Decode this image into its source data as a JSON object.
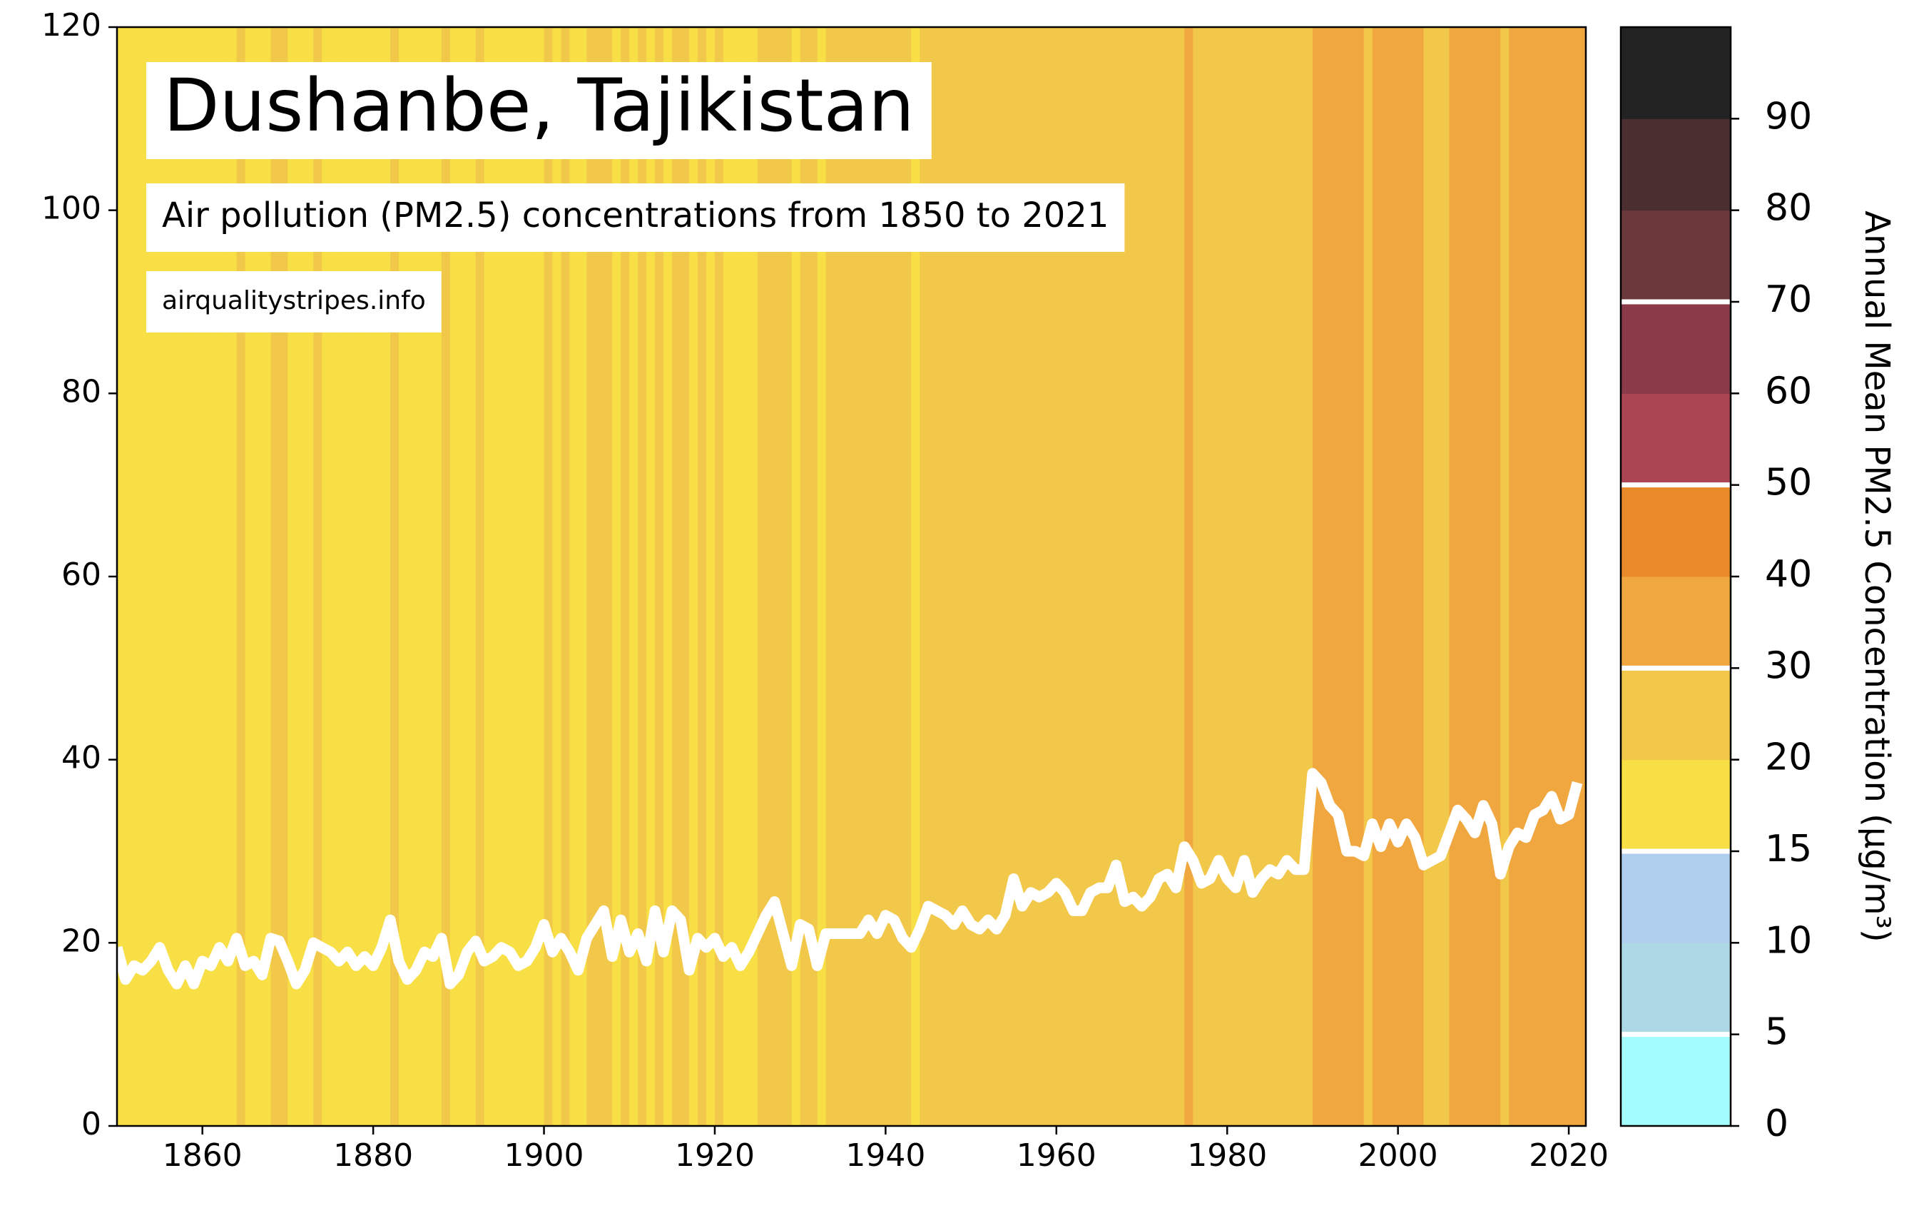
{
  "chart_data": {
    "type": "line",
    "title": "Dushanbe, Tajikistan",
    "subtitle": "Air pollution (PM2.5) concentrations from 1850 to 2021",
    "source": "airqualitystripes.info",
    "color": "#ffffff",
    "x": [
      1850,
      1851,
      1852,
      1853,
      1854,
      1855,
      1856,
      1857,
      1858,
      1859,
      1860,
      1861,
      1862,
      1863,
      1864,
      1865,
      1866,
      1867,
      1868,
      1869,
      1870,
      1871,
      1872,
      1873,
      1874,
      1875,
      1876,
      1877,
      1878,
      1879,
      1880,
      1881,
      1882,
      1883,
      1884,
      1885,
      1886,
      1887,
      1888,
      1889,
      1890,
      1891,
      1892,
      1893,
      1894,
      1895,
      1896,
      1897,
      1898,
      1899,
      1900,
      1901,
      1902,
      1903,
      1904,
      1905,
      1906,
      1907,
      1908,
      1909,
      1910,
      1911,
      1912,
      1913,
      1914,
      1915,
      1916,
      1917,
      1918,
      1919,
      1920,
      1921,
      1922,
      1923,
      1924,
      1925,
      1926,
      1927,
      1928,
      1929,
      1930,
      1931,
      1932,
      1933,
      1934,
      1935,
      1936,
      1937,
      1938,
      1939,
      1940,
      1941,
      1942,
      1943,
      1944,
      1945,
      1946,
      1947,
      1948,
      1949,
      1950,
      1951,
      1952,
      1953,
      1954,
      1955,
      1956,
      1957,
      1958,
      1959,
      1960,
      1961,
      1962,
      1963,
      1964,
      1965,
      1966,
      1967,
      1968,
      1969,
      1970,
      1971,
      1972,
      1973,
      1974,
      1975,
      1976,
      1977,
      1978,
      1979,
      1980,
      1981,
      1982,
      1983,
      1984,
      1985,
      1986,
      1987,
      1988,
      1989,
      1990,
      1991,
      1992,
      1993,
      1994,
      1995,
      1996,
      1997,
      1998,
      1999,
      2000,
      2001,
      2002,
      2003,
      2004,
      2005,
      2006,
      2007,
      2008,
      2009,
      2010,
      2011,
      2012,
      2013,
      2014,
      2015,
      2016,
      2017,
      2018,
      2019,
      2020,
      2021
    ],
    "values": [
      19.5,
      16,
      17.5,
      17,
      18,
      19.5,
      17,
      15.5,
      17.5,
      15.5,
      18,
      17.5,
      19.5,
      18,
      20.5,
      17.5,
      18,
      16.5,
      20.5,
      20.2,
      18,
      15.5,
      17,
      20,
      19.5,
      19,
      18,
      19,
      17.5,
      18.5,
      17.5,
      19.5,
      22.5,
      18,
      16,
      17,
      19,
      18.5,
      20.5,
      15.5,
      16.5,
      19,
      20.2,
      18,
      18.5,
      19.5,
      19,
      17.5,
      18,
      19.5,
      22,
      19,
      20.5,
      19,
      17,
      20.5,
      22,
      23.5,
      18.5,
      22.5,
      19,
      21,
      18,
      23.5,
      19,
      23.5,
      22.5,
      17,
      20.5,
      19.5,
      20.5,
      18.5,
      19.5,
      17.5,
      19,
      21,
      23,
      24.5,
      21,
      17.5,
      22,
      21.5,
      17.5,
      21,
      21,
      21,
      21,
      21,
      22.5,
      21,
      23,
      22.5,
      20.5,
      19.5,
      21.5,
      24,
      23.5,
      23,
      22,
      23.5,
      22,
      21.5,
      22.5,
      21.5,
      23,
      27,
      24,
      25.5,
      25,
      25.5,
      26.5,
      25.5,
      23.5,
      23.5,
      25.5,
      26,
      26,
      28.5,
      24.5,
      25,
      24,
      25,
      27,
      27.5,
      26,
      30.5,
      29,
      26.5,
      27,
      29,
      27,
      26,
      29,
      25.5,
      27,
      28,
      27.5,
      29,
      28,
      28,
      38.5,
      37.5,
      35,
      34,
      30,
      30,
      29.5,
      33,
      30.5,
      33,
      31,
      33,
      31.5,
      28.5,
      29,
      29.5,
      32,
      34.5,
      33.5,
      32,
      35,
      33,
      27.5,
      30.5,
      32,
      31.5,
      34,
      34.5,
      36,
      33.5,
      34,
      37.5
    ],
    "xlim": [
      1850,
      2022
    ],
    "ylim": [
      0,
      120
    ],
    "xticks": [
      1860,
      1880,
      1900,
      1920,
      1940,
      1960,
      1980,
      2000,
      2020
    ],
    "yticks": [
      0,
      20,
      40,
      60,
      80,
      100,
      120
    ],
    "colorbar": {
      "label": "Annual Mean PM2.5 Concentration (µg/m³)",
      "bounds": [
        0,
        5,
        10,
        15,
        20,
        30,
        40,
        50,
        60,
        70,
        80,
        90,
        100
      ],
      "colors": [
        "#a3fdfe",
        "#add8e6",
        "#b0cfee",
        "#f7df45",
        "#f2c84a",
        "#f0a73f",
        "#e8892a",
        "#ac4553",
        "#8a3a48",
        "#6b393c",
        "#4a2e30",
        "#232323"
      ],
      "ticks": [
        0,
        5,
        10,
        15,
        20,
        30,
        40,
        50,
        60,
        70,
        80,
        90
      ],
      "lines": [
        5,
        15,
        30,
        50,
        70
      ]
    }
  }
}
